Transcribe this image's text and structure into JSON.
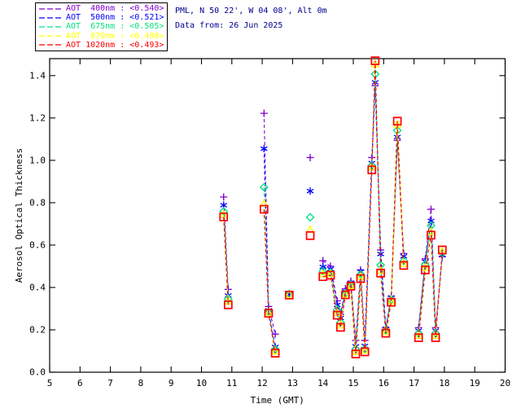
{
  "header": {
    "station_line": "PML, N 50 22', W 04 08', Alt 0m",
    "date_line": "Data from: 26 Jun 2025"
  },
  "chart_data": {
    "type": "line",
    "title": "PML, N 50 22', W 04 08', Alt 0m",
    "subtitle": "Data from: 26 Jun 2025",
    "xlabel": "Time (GMT)",
    "ylabel": "Aerosol Optical Thickness",
    "xlim": [
      5,
      20
    ],
    "ylim": [
      0.0,
      1.48
    ],
    "xticks": [
      5,
      6,
      7,
      8,
      9,
      10,
      11,
      12,
      13,
      14,
      15,
      16,
      17,
      18,
      19,
      20
    ],
    "yticks": [
      0.0,
      0.2,
      0.4,
      0.6,
      0.8,
      1.0,
      1.2,
      1.4
    ],
    "grid": false,
    "legend_position": "top-left",
    "line_style": "dashed",
    "series": [
      {
        "name": "AOT  400nm",
        "wavelength": "400nm",
        "mean": "<0.540>",
        "label": "AOT  400nm : <0.540>",
        "color": "#8000D0",
        "marker": "plus"
      },
      {
        "name": "AOT  500nm",
        "wavelength": "500nm",
        "mean": "<0.521>",
        "label": "AOT  500nm : <0.521>",
        "color": "#0000FF",
        "marker": "asterisk"
      },
      {
        "name": "AOT  675nm",
        "wavelength": "675nm",
        "mean": "<0.505>",
        "label": "AOT  675nm : <0.505>",
        "color": "#00E07D",
        "marker": "diamond"
      },
      {
        "name": "AOT  870nm",
        "wavelength": "870nm",
        "mean": "<0.498>",
        "label": "AOT  870nm : <0.498>",
        "color": "#FFFF00",
        "marker": "triangle"
      },
      {
        "name": "AOT 1020nm",
        "wavelength": "1020nm",
        "mean": "<0.493>",
        "label": "AOT 1020nm : <0.493>",
        "color": "#FF0000",
        "marker": "square"
      }
    ],
    "segments": [
      {
        "times": [
          10.73,
          10.88
        ],
        "values": [
          [
            0.827,
            0.391
          ],
          [
            0.788,
            0.362
          ],
          [
            0.759,
            0.346
          ],
          [
            0.744,
            0.335
          ],
          [
            0.733,
            0.318
          ]
        ]
      },
      {
        "times": [
          12.06,
          12.21,
          12.43
        ],
        "values": [
          [
            1.222,
            0.31,
            0.18
          ],
          [
            1.055,
            0.292,
            0.119
          ],
          [
            0.873,
            0.285,
            0.108
          ],
          [
            0.796,
            0.281,
            0.098
          ],
          [
            0.769,
            0.278,
            0.09
          ]
        ]
      },
      {
        "times": [
          12.89
        ],
        "values": [
          [
            0.372
          ],
          [
            0.369
          ],
          [
            0.367
          ],
          [
            0.366
          ],
          [
            0.364
          ]
        ]
      },
      {
        "times": [
          13.58
        ],
        "values": [
          [
            1.013
          ],
          [
            0.855
          ],
          [
            0.731
          ],
          [
            0.673
          ],
          [
            0.645
          ]
        ]
      },
      {
        "times": [
          14.0,
          14.25,
          14.47,
          14.58,
          14.74,
          14.92,
          15.08,
          15.24,
          15.38,
          15.61,
          15.72,
          15.9,
          16.07,
          16.25,
          16.45,
          16.66
        ],
        "values": [
          [
            0.526,
            0.5,
            0.337,
            0.272,
            0.394,
            0.43,
            0.15,
            0.483,
            0.15,
            1.013,
            1.352,
            0.577,
            0.21,
            0.358,
            1.095,
            0.56
          ],
          [
            0.497,
            0.487,
            0.317,
            0.256,
            0.381,
            0.419,
            0.122,
            0.474,
            0.124,
            0.987,
            1.368,
            0.558,
            0.205,
            0.353,
            1.11,
            0.547
          ],
          [
            0.477,
            0.47,
            0.295,
            0.235,
            0.372,
            0.412,
            0.109,
            0.462,
            0.11,
            0.975,
            1.407,
            0.506,
            0.198,
            0.342,
            1.141,
            0.525
          ],
          [
            0.462,
            0.465,
            0.28,
            0.222,
            0.368,
            0.408,
            0.096,
            0.452,
            0.103,
            0.968,
            1.455,
            0.48,
            0.19,
            0.335,
            1.17,
            0.512
          ],
          [
            0.451,
            0.458,
            0.269,
            0.212,
            0.365,
            0.406,
            0.086,
            0.442,
            0.096,
            0.955,
            1.47,
            0.468,
            0.184,
            0.33,
            1.185,
            0.504
          ]
        ]
      },
      {
        "times": [
          17.15,
          17.37,
          17.56,
          17.71,
          17.93
        ],
        "values": [
          [
            0.21,
            0.535,
            0.769,
            0.21,
            0.545
          ],
          [
            0.196,
            0.522,
            0.714,
            0.196,
            0.554
          ],
          [
            0.183,
            0.508,
            0.692,
            0.183,
            0.562
          ],
          [
            0.172,
            0.494,
            0.663,
            0.172,
            0.571
          ],
          [
            0.163,
            0.483,
            0.647,
            0.163,
            0.577
          ]
        ]
      }
    ],
    "colors": {
      "background": "#FFFFFF",
      "axis": "#000000",
      "title_text": "#000090"
    }
  }
}
